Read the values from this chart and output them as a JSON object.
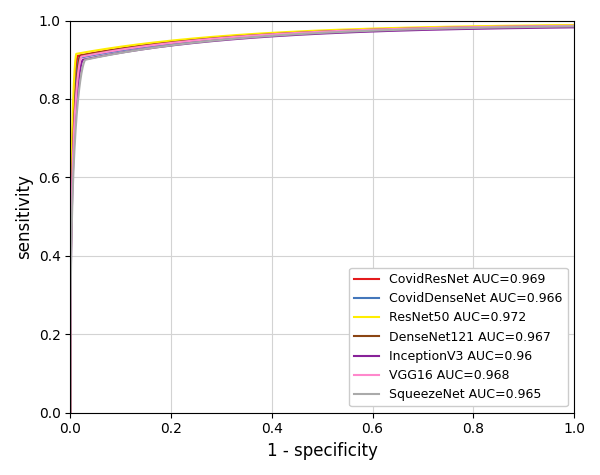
{
  "title": "",
  "xlabel": "1 - specificity",
  "ylabel": "sensitivity",
  "xlim": [
    0.0,
    1.0
  ],
  "ylim": [
    0.0,
    1.0
  ],
  "curves": [
    {
      "label": "CovidResNet AUC=0.969",
      "color": "#e41a1c",
      "auc": 0.969,
      "knee_x": 0.015,
      "knee_y": 0.91,
      "lw": 1.5,
      "seed": 1
    },
    {
      "label": "CovidDenseNet AUC=0.966",
      "color": "#4477bb",
      "auc": 0.966,
      "knee_x": 0.018,
      "knee_y": 0.905,
      "lw": 1.5,
      "seed": 2
    },
    {
      "label": "ResNet50 AUC=0.972",
      "color": "#ffee00",
      "auc": 0.972,
      "knee_x": 0.012,
      "knee_y": 0.915,
      "lw": 1.5,
      "seed": 3
    },
    {
      "label": "DenseNet121 AUC=0.967",
      "color": "#8B4513",
      "auc": 0.967,
      "knee_x": 0.02,
      "knee_y": 0.91,
      "lw": 1.5,
      "seed": 4
    },
    {
      "label": "InceptionV3 AUC=0.96",
      "color": "#882299",
      "auc": 0.96,
      "knee_x": 0.025,
      "knee_y": 0.9,
      "lw": 1.5,
      "seed": 5
    },
    {
      "label": "VGG16 AUC=0.968",
      "color": "#ff88cc",
      "auc": 0.968,
      "knee_x": 0.022,
      "knee_y": 0.908,
      "lw": 1.5,
      "seed": 6
    },
    {
      "label": "SqueezeNet AUC=0.965",
      "color": "#aaaaaa",
      "auc": 0.965,
      "knee_x": 0.03,
      "knee_y": 0.9,
      "lw": 1.5,
      "seed": 7
    }
  ],
  "xticks": [
    0.0,
    0.2,
    0.4,
    0.6,
    0.8,
    1.0
  ],
  "yticks": [
    0.0,
    0.2,
    0.4,
    0.6,
    0.8,
    1.0
  ],
  "legend_loc": "lower right",
  "grid": true,
  "figsize": [
    6.0,
    4.75
  ],
  "dpi": 100
}
